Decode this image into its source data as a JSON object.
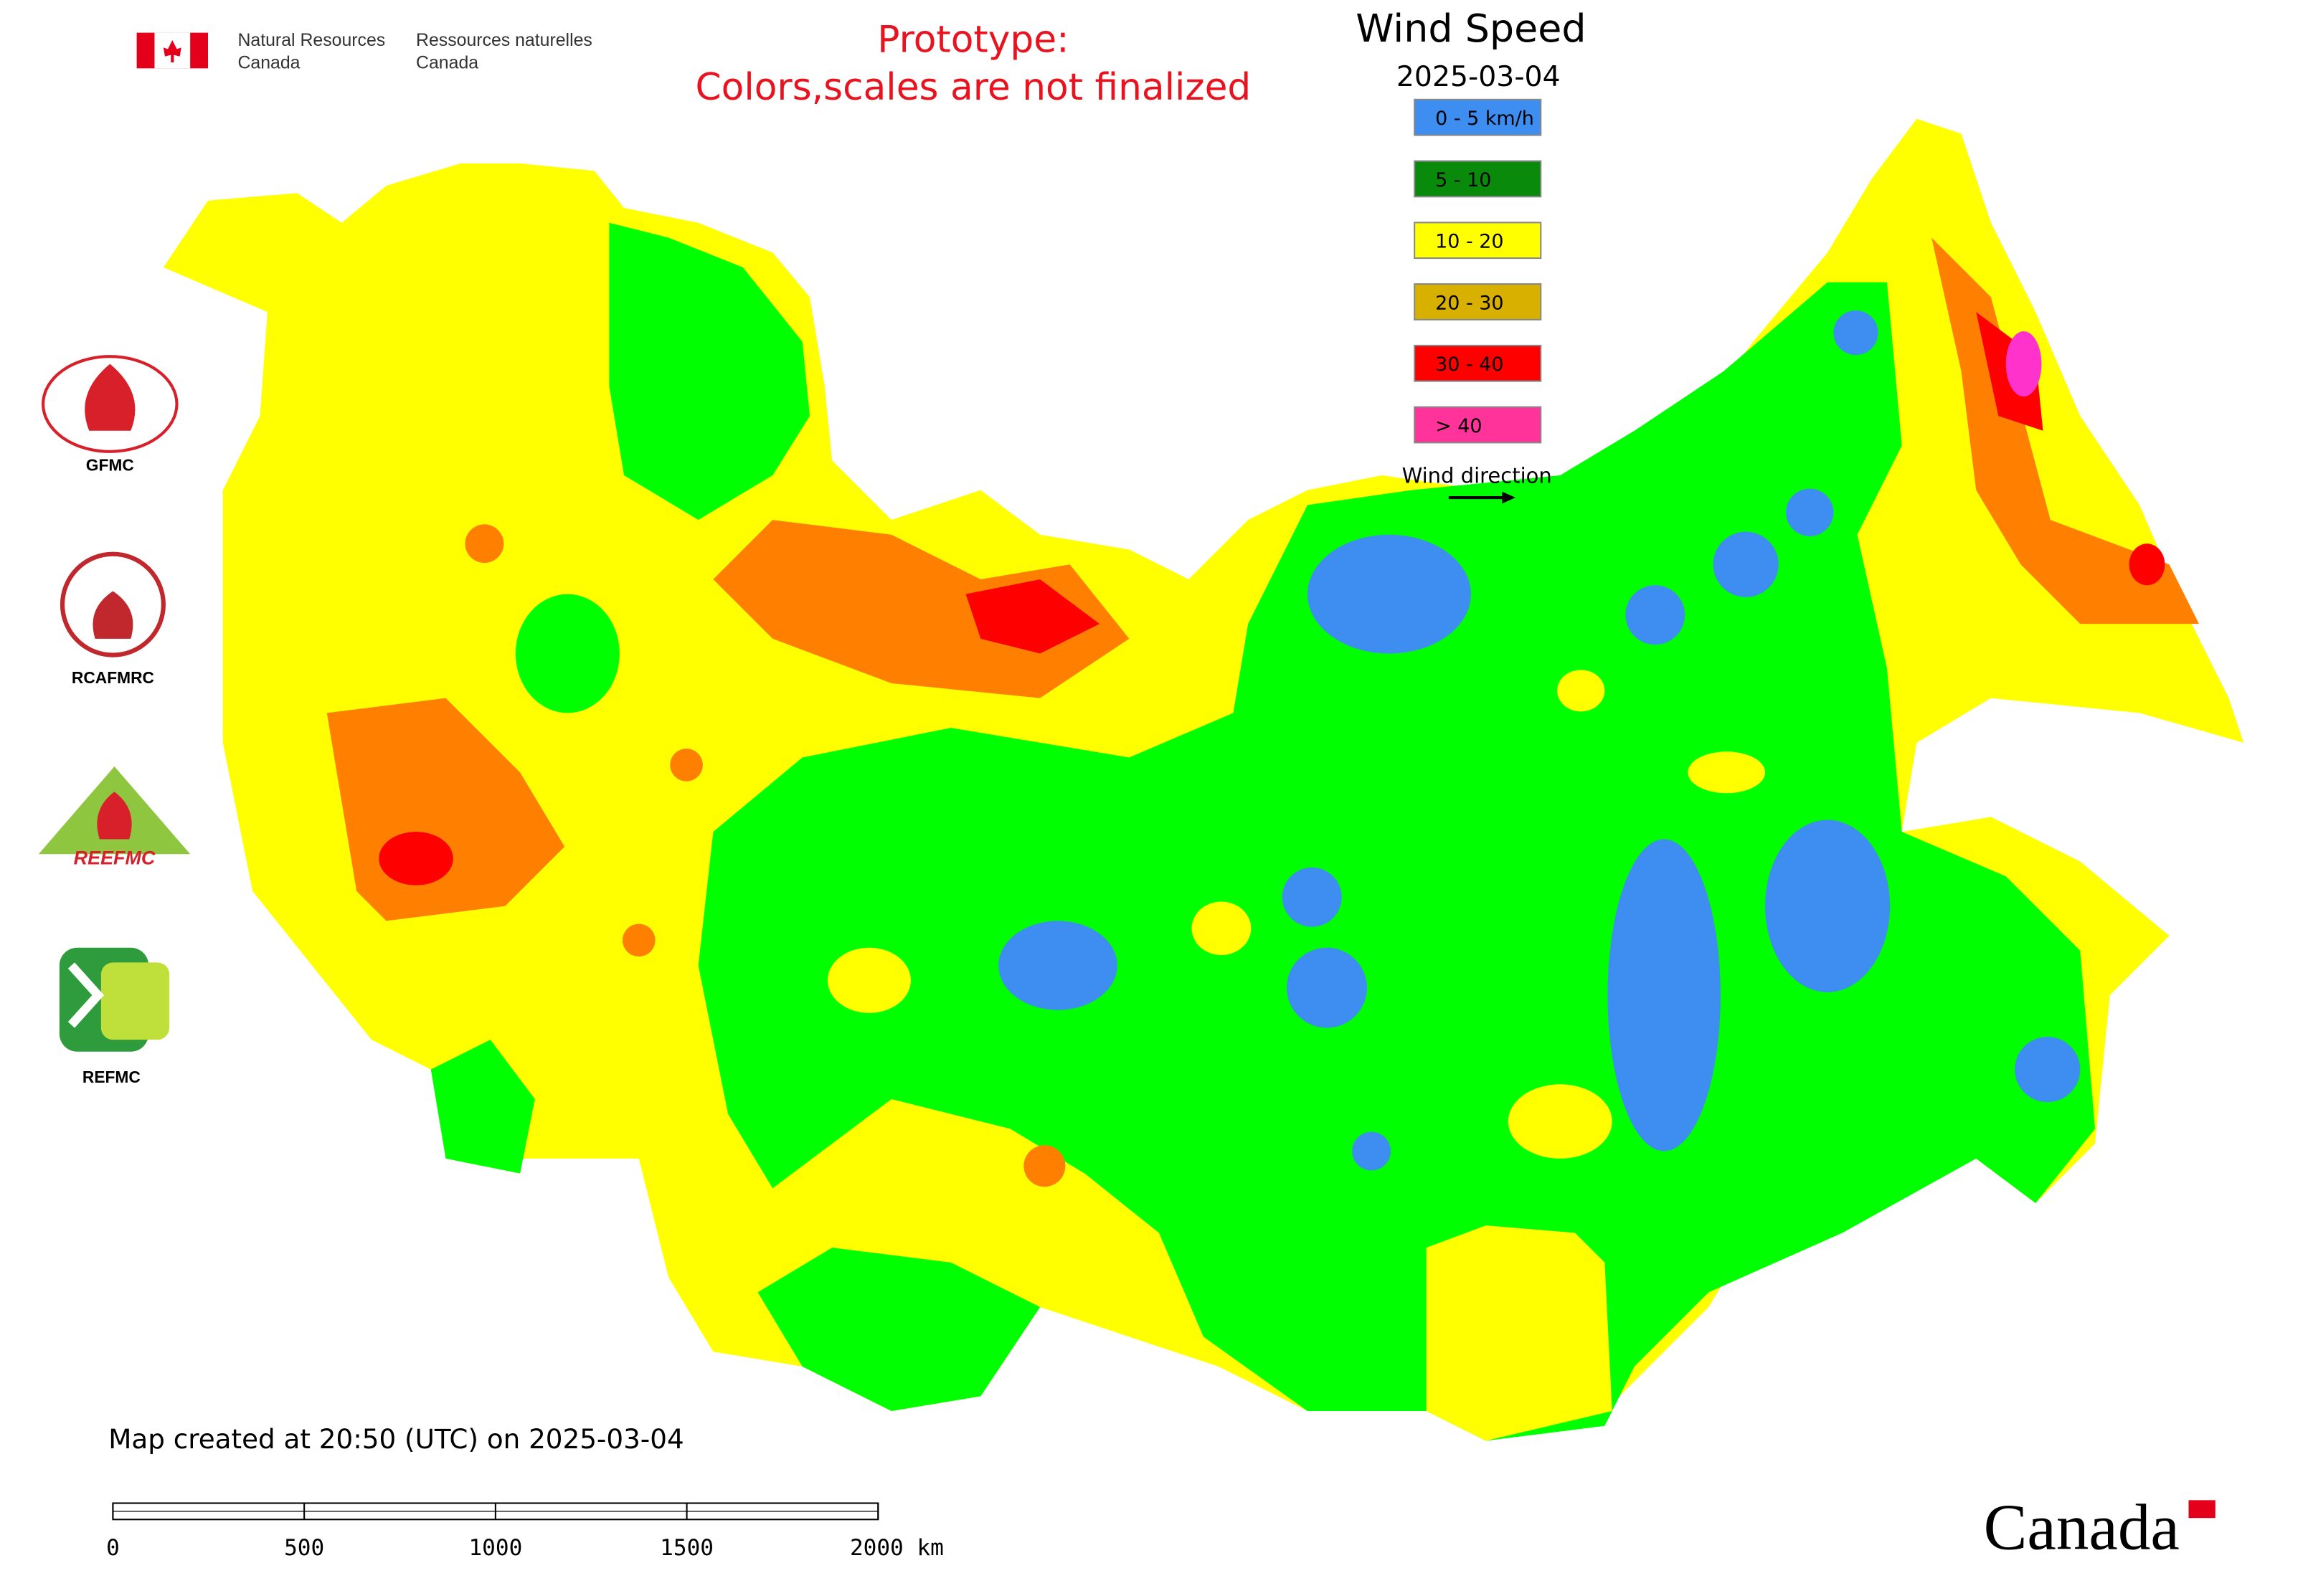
{
  "header": {
    "agency_en": [
      "Natural Resources",
      "Canada"
    ],
    "agency_fr": [
      "Ressources naturelles",
      "Canada"
    ]
  },
  "notice": [
    "Prototype:",
    "Colors,scales are not finalized"
  ],
  "legend": {
    "title": "Wind Speed",
    "date": "2025-03-04",
    "items": [
      {
        "label": "0 - 5 km/h",
        "color": "#3d8ef0"
      },
      {
        "label": "5 - 10",
        "color": "#0a8a0a"
      },
      {
        "label": "10 - 20",
        "color": "#ffff00"
      },
      {
        "label": "20 - 30",
        "color": "#d8b000"
      },
      {
        "label": "30 - 40",
        "color": "#ff0000"
      },
      {
        "label": "> 40",
        "color": "#ff3399"
      }
    ],
    "wind_direction": "Wind direction"
  },
  "logos": {
    "gfmc": "GFMC",
    "rcafmrc": "RCAFMRC",
    "reefmc_mark": "REEFMC",
    "refmc": "REFMC"
  },
  "footer": {
    "created": "Map created at 20:50 (UTC) on 2025-03-04",
    "scale_labels": [
      "0",
      "500",
      "1000",
      "1500",
      "2000 km"
    ],
    "wordmark": "Canada"
  }
}
